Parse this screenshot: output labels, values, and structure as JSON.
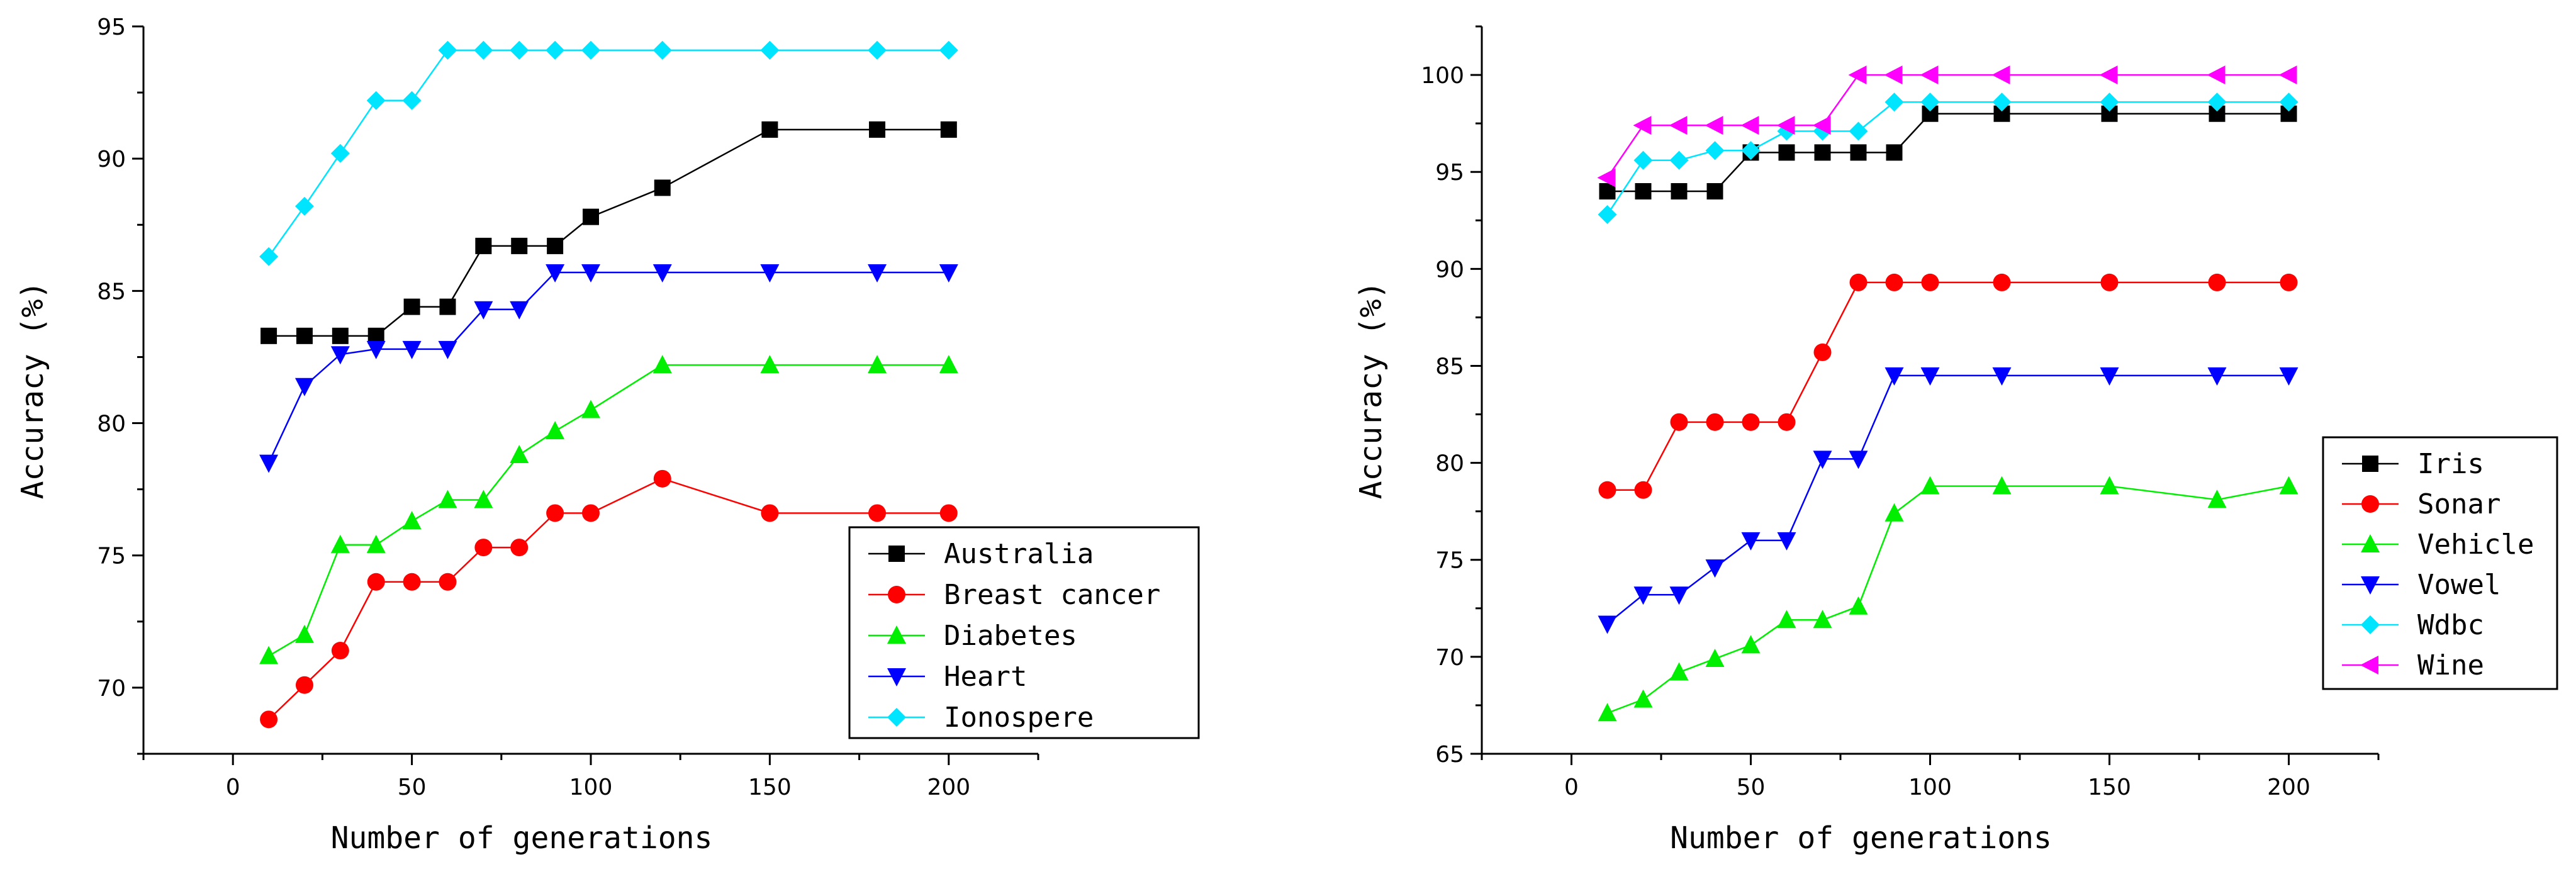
{
  "chart_data": [
    {
      "type": "line",
      "title": "",
      "xlabel": "Number of generations",
      "ylabel": "Accuracy (%)",
      "xlim": [
        -25,
        225
      ],
      "ylim": [
        67.5,
        95
      ],
      "xticks": [
        0,
        50,
        100,
        150,
        200
      ],
      "yticks": [
        70,
        75,
        80,
        85,
        90,
        95
      ],
      "grid": false,
      "legend_position": "bottom-right",
      "x": [
        10,
        20,
        30,
        40,
        50,
        60,
        70,
        80,
        90,
        100,
        120,
        150,
        180,
        200
      ],
      "series": [
        {
          "name": "Australia",
          "color": "#000000",
          "marker": "square",
          "values": [
            83.3,
            83.3,
            83.3,
            83.3,
            84.4,
            84.4,
            86.7,
            86.7,
            86.7,
            87.8,
            88.9,
            91.1,
            91.1,
            91.1
          ]
        },
        {
          "name": "Breast cancer",
          "color": "#ff0000",
          "marker": "circle",
          "values": [
            68.8,
            70.1,
            71.4,
            74.0,
            74.0,
            74.0,
            75.3,
            75.3,
            76.6,
            76.6,
            77.9,
            76.6,
            76.6,
            76.6
          ]
        },
        {
          "name": "Diabetes",
          "color": "#00ee00",
          "marker": "triangle-up",
          "values": [
            71.2,
            72.0,
            75.4,
            75.4,
            76.3,
            77.1,
            77.1,
            78.8,
            79.7,
            80.5,
            82.2,
            82.2,
            82.2,
            82.2
          ]
        },
        {
          "name": "Heart",
          "color": "#0000ff",
          "marker": "triangle-down",
          "values": [
            78.5,
            81.4,
            82.6,
            82.8,
            82.8,
            82.8,
            84.3,
            84.3,
            85.7,
            85.7,
            85.7,
            85.7,
            85.7,
            85.7
          ]
        },
        {
          "name": "Ionospere",
          "color": "#00e5ff",
          "marker": "diamond",
          "values": [
            86.3,
            88.2,
            90.2,
            92.2,
            92.2,
            94.1,
            94.1,
            94.1,
            94.1,
            94.1,
            94.1,
            94.1,
            94.1,
            94.1
          ]
        }
      ]
    },
    {
      "type": "line",
      "title": "",
      "xlabel": "Number of generations",
      "ylabel": "Accuracy (%)",
      "xlim": [
        -25,
        225
      ],
      "ylim": [
        65,
        102.5
      ],
      "xticks": [
        0,
        50,
        100,
        150,
        200
      ],
      "yticks": [
        65,
        70,
        75,
        80,
        85,
        90,
        95,
        100
      ],
      "grid": false,
      "legend_position": "center-right",
      "x": [
        10,
        20,
        30,
        40,
        50,
        60,
        70,
        80,
        90,
        100,
        120,
        150,
        180,
        200
      ],
      "series": [
        {
          "name": "Iris",
          "color": "#000000",
          "marker": "square",
          "values": [
            94.0,
            94.0,
            94.0,
            94.0,
            96.0,
            96.0,
            96.0,
            96.0,
            96.0,
            98.0,
            98.0,
            98.0,
            98.0,
            98.0
          ]
        },
        {
          "name": "Sonar",
          "color": "#ff0000",
          "marker": "circle",
          "values": [
            78.6,
            78.6,
            82.1,
            82.1,
            82.1,
            82.1,
            85.7,
            89.3,
            89.3,
            89.3,
            89.3,
            89.3,
            89.3,
            89.3
          ]
        },
        {
          "name": "Vehicle",
          "color": "#00ee00",
          "marker": "triangle-up",
          "values": [
            67.1,
            67.8,
            69.2,
            69.9,
            70.6,
            71.9,
            71.9,
            72.6,
            77.4,
            78.8,
            78.8,
            78.8,
            78.1,
            78.8
          ]
        },
        {
          "name": "Vowel",
          "color": "#0000ff",
          "marker": "triangle-down",
          "values": [
            71.7,
            73.2,
            73.2,
            74.6,
            76.0,
            76.0,
            80.2,
            80.2,
            84.5,
            84.5,
            84.5,
            84.5,
            84.5,
            84.5
          ]
        },
        {
          "name": "Wdbc",
          "color": "#00e5ff",
          "marker": "diamond",
          "values": [
            92.8,
            95.6,
            95.6,
            96.1,
            96.1,
            97.1,
            97.1,
            97.1,
            98.6,
            98.6,
            98.6,
            98.6,
            98.6,
            98.6
          ]
        },
        {
          "name": "Wine",
          "color": "#ff00ff",
          "marker": "triangle-left",
          "values": [
            94.7,
            97.4,
            97.4,
            97.4,
            97.4,
            97.4,
            97.4,
            100,
            100,
            100,
            100,
            100,
            100,
            100
          ]
        }
      ]
    }
  ]
}
